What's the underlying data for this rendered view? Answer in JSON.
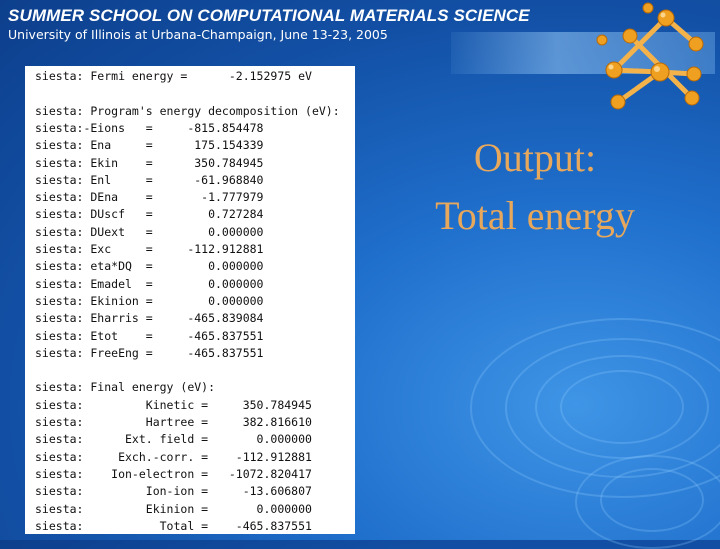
{
  "header": {
    "title": "SUMMER SCHOOL ON COMPUTATIONAL MATERIALS SCIENCE",
    "subtitle": "University of Illinois at Urbana-Champaign, June 13-23, 2005"
  },
  "slide_title": [
    "Output:",
    "Total energy"
  ],
  "siesta_output": {
    "lines": [
      "siesta: Fermi energy =      -2.152975 eV",
      "",
      "siesta: Program's energy decomposition (eV):",
      "siesta:-Eions   =     -815.854478",
      "siesta: Ena     =      175.154339",
      "siesta: Ekin    =      350.784945",
      "siesta: Enl     =      -61.968840",
      "siesta: DEna    =       -1.777979",
      "siesta: DUscf   =        0.727284",
      "siesta: DUext   =        0.000000",
      "siesta: Exc     =     -112.912881",
      "siesta: eta*DQ  =        0.000000",
      "siesta: Emadel  =        0.000000",
      "siesta: Ekinion =        0.000000",
      "siesta: Eharris =     -465.839084",
      "siesta: Etot    =     -465.837551",
      "siesta: FreeEng =     -465.837551",
      "",
      "siesta: Final energy (eV):",
      "siesta:         Kinetic =     350.784945",
      "siesta:         Hartree =     382.816610",
      "siesta:      Ext. field =       0.000000",
      "siesta:     Exch.-corr. =    -112.912881",
      "siesta:    Ion-electron =   -1072.820417",
      "siesta:         Ion-ion =     -13.606807",
      "siesta:         Ekinion =       0.000000",
      "siesta:           Total =    -465.837551"
    ]
  },
  "colors": {
    "background": "#1f6fcc",
    "title_accent": "#e8a85c",
    "logo_atom": "#f0a020",
    "header_text": "#ffffff"
  },
  "icons": [
    "molecule-logo-icon"
  ]
}
